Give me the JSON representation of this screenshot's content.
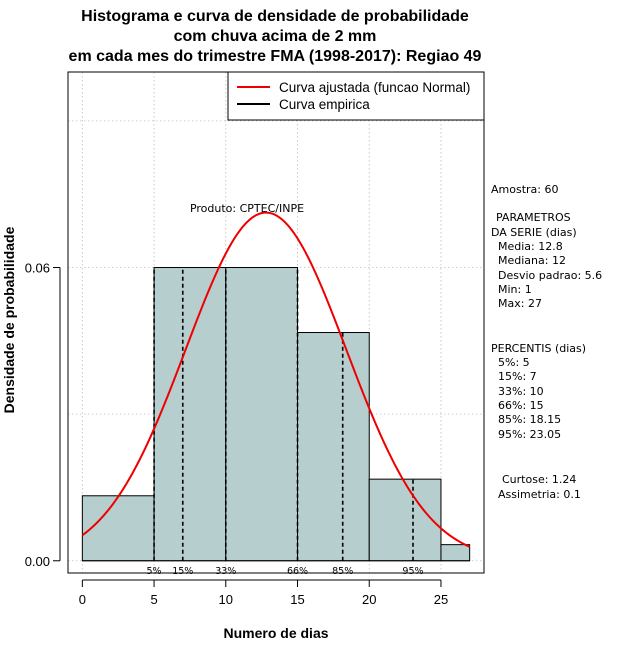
{
  "chart_data": {
    "type": "histogram",
    "title_lines": [
      "Histograma e curva de densidade de probabilidade",
      "com chuva acima de 2 mm",
      "em cada mes do trimestre FMA (1998-2017): Regiao 49"
    ],
    "xlabel": "Numero de dias",
    "ylabel": "Densidade de probabilidade",
    "xlim": [
      -1,
      28
    ],
    "ylim": [
      -0.0025,
      0.1
    ],
    "x_ticks": [
      0,
      5,
      10,
      15,
      20,
      25
    ],
    "y_ticks": [
      0.0,
      0.06
    ],
    "y_tick_labels": [
      "0.00",
      "0.06"
    ],
    "bins": [
      {
        "x0": 0,
        "x1": 5,
        "density": 0.0133
      },
      {
        "x0": 5,
        "x1": 10,
        "density": 0.06
      },
      {
        "x0": 10,
        "x1": 15,
        "density": 0.06
      },
      {
        "x0": 15,
        "x1": 20,
        "density": 0.0467
      },
      {
        "x0": 20,
        "x1": 25,
        "density": 0.0167
      },
      {
        "x0": 25,
        "x1": 27,
        "density": 0.0033
      }
    ],
    "normal_curve": {
      "mean": 12.8,
      "sd": 5.6,
      "from": 0,
      "to": 27
    },
    "percentile_lines": [
      {
        "label": "5%",
        "x": 5
      },
      {
        "label": "15%",
        "x": 7
      },
      {
        "label": "33%",
        "x": 10
      },
      {
        "label": "66%",
        "x": 15
      },
      {
        "label": "85%",
        "x": 18.15
      },
      {
        "label": "95%",
        "x": 23.05
      }
    ],
    "legend": {
      "position": "top-right",
      "entries": [
        {
          "label": "Curva ajustada (funcao Normal)",
          "color": "#ee0000"
        },
        {
          "label": "Curva empirica",
          "color": "#000000"
        }
      ]
    },
    "credit": "Produto: CPTEC/INPE",
    "colors": {
      "bar_fill": "#b6cece",
      "curve": "#ee0000",
      "grid": "#c0c0c0"
    }
  },
  "side_panel": {
    "sample": "Amostra: 60",
    "params_header": [
      "PARAMETROS",
      "DA SERIE (dias)"
    ],
    "params": [
      "Media: 12.8",
      "Mediana: 12",
      "Desvio padrao: 5.6",
      "Min: 1",
      "Max: 27"
    ],
    "percentis_header": "PERCENTIS (dias)",
    "percentis": [
      "5%: 5",
      "15%: 7",
      "33%: 10",
      "66%: 15",
      "85%: 18.15",
      "95%: 23.05"
    ],
    "shape": [
      "Curtose: 1.24",
      "Assimetria: 0.1"
    ]
  }
}
